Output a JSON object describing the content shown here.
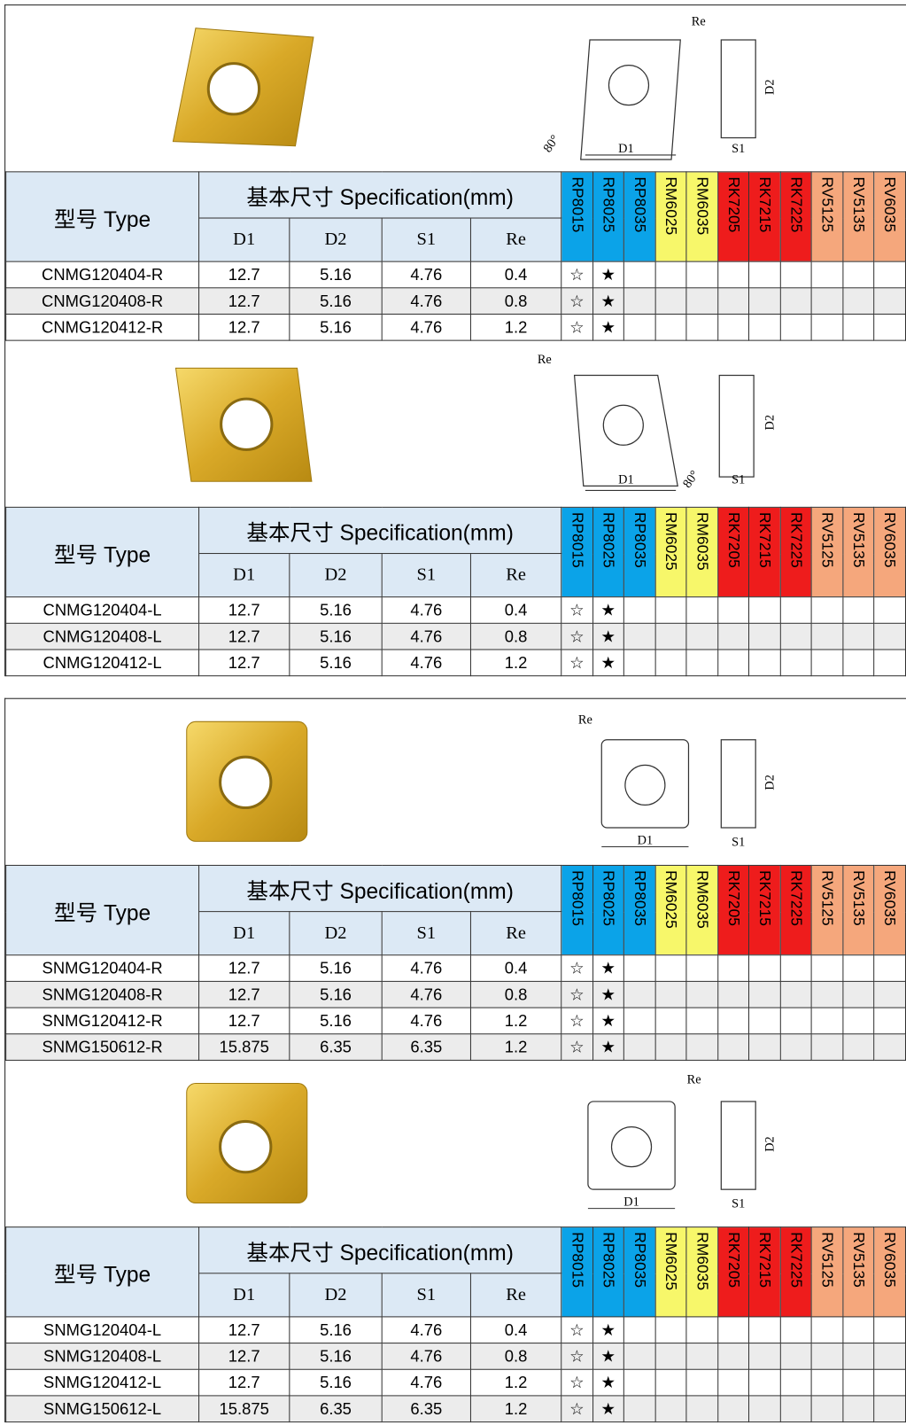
{
  "grade_colors": [
    "#0ba3e8",
    "#0ba3e8",
    "#0ba3e8",
    "#f7f76a",
    "#f7f76a",
    "#ee1c1c",
    "#ee1c1c",
    "#ee1c1c",
    "#f5a77c",
    "#f5a77c",
    "#f5a77c"
  ],
  "sections": [
    {
      "shape": "rhombus",
      "diagram": {
        "re": "Re",
        "d1": "D1",
        "d2": "D2",
        "s1": "S1",
        "angle": "80°"
      },
      "header": {
        "type": "型号 Type",
        "spec": "基本尺寸 Specification(mm)",
        "dims": [
          "D1",
          "D2",
          "S1",
          "Re"
        ],
        "grades": [
          "RP8015",
          "RP8025",
          "RP8035",
          "RM6025",
          "RM6035",
          "RK7205",
          "RK7215",
          "RK7225",
          "RV5125",
          "RV5135",
          "RV6035"
        ]
      },
      "rows": [
        {
          "model": "CNMG120404-R",
          "values": [
            "12.7",
            "5.16",
            "4.76",
            "0.4"
          ],
          "marks": [
            "☆",
            "★"
          ]
        },
        {
          "model": "CNMG120408-R",
          "values": [
            "12.7",
            "5.16",
            "4.76",
            "0.8"
          ],
          "marks": [
            "☆",
            "★"
          ]
        },
        {
          "model": "CNMG120412-R",
          "values": [
            "12.7",
            "5.16",
            "4.76",
            "1.2"
          ],
          "marks": [
            "☆",
            "★"
          ]
        }
      ]
    },
    {
      "shape": "rhombus",
      "diagram": {
        "re": "Re",
        "d1": "D1",
        "d2": "D2",
        "s1": "S1",
        "angle": "80°"
      },
      "header": {
        "type": "型号 Type",
        "spec": "基本尺寸 Specification(mm)",
        "dims": [
          "D1",
          "D2",
          "S1",
          "Re"
        ],
        "grades": [
          "RP8015",
          "RP8025",
          "RP8035",
          "RM6025",
          "RM6035",
          "RK7205",
          "RK7215",
          "RK7225",
          "RV5125",
          "RV5135",
          "RV6035"
        ]
      },
      "rows": [
        {
          "model": "CNMG120404-L",
          "values": [
            "12.7",
            "5.16",
            "4.76",
            "0.4"
          ],
          "marks": [
            "☆",
            "★"
          ]
        },
        {
          "model": "CNMG120408-L",
          "values": [
            "12.7",
            "5.16",
            "4.76",
            "0.8"
          ],
          "marks": [
            "☆",
            "★"
          ]
        },
        {
          "model": "CNMG120412-L",
          "values": [
            "12.7",
            "5.16",
            "4.76",
            "1.2"
          ],
          "marks": [
            "☆",
            "★"
          ]
        }
      ]
    },
    {
      "shape": "square",
      "diagram": {
        "re": "Re",
        "d1": "D1",
        "d2": "D2",
        "s1": "S1"
      },
      "header": {
        "type": "型号 Type",
        "spec": "基本尺寸 Specification(mm)",
        "dims": [
          "D1",
          "D2",
          "S1",
          "Re"
        ],
        "grades": [
          "RP8015",
          "RP8025",
          "RP8035",
          "RM6025",
          "RM6035",
          "RK7205",
          "RK7215",
          "RK7225",
          "RV5125",
          "RV5135",
          "RV6035"
        ]
      },
      "rows": [
        {
          "model": "SNMG120404-R",
          "values": [
            "12.7",
            "5.16",
            "4.76",
            "0.4"
          ],
          "marks": [
            "☆",
            "★"
          ]
        },
        {
          "model": "SNMG120408-R",
          "values": [
            "12.7",
            "5.16",
            "4.76",
            "0.8"
          ],
          "marks": [
            "☆",
            "★"
          ]
        },
        {
          "model": "SNMG120412-R",
          "values": [
            "12.7",
            "5.16",
            "4.76",
            "1.2"
          ],
          "marks": [
            "☆",
            "★"
          ]
        },
        {
          "model": "SNMG150612-R",
          "values": [
            "15.875",
            "6.35",
            "6.35",
            "1.2"
          ],
          "marks": [
            "☆",
            "★"
          ]
        }
      ]
    },
    {
      "shape": "square",
      "diagram": {
        "re": "Re",
        "d1": "D1",
        "d2": "D2",
        "s1": "S1"
      },
      "header": {
        "type": "型号 Type",
        "spec": "基本尺寸 Specification(mm)",
        "dims": [
          "D1",
          "D2",
          "S1",
          "Re"
        ],
        "grades": [
          "RP8015",
          "RP8025",
          "RP8035",
          "RM6025",
          "RM6035",
          "RK7205",
          "RK7215",
          "RK7225",
          "RV5125",
          "RV5135",
          "RV6035"
        ]
      },
      "rows": [
        {
          "model": "SNMG120404-L",
          "values": [
            "12.7",
            "5.16",
            "4.76",
            "0.4"
          ],
          "marks": [
            "☆",
            "★"
          ]
        },
        {
          "model": "SNMG120408-L",
          "values": [
            "12.7",
            "5.16",
            "4.76",
            "0.8"
          ],
          "marks": [
            "☆",
            "★"
          ]
        },
        {
          "model": "SNMG120412-L",
          "values": [
            "12.7",
            "5.16",
            "4.76",
            "1.2"
          ],
          "marks": [
            "☆",
            "★"
          ]
        },
        {
          "model": "SNMG150612-L",
          "values": [
            "15.875",
            "6.35",
            "6.35",
            "1.2"
          ],
          "marks": [
            "☆",
            "★"
          ]
        }
      ]
    }
  ]
}
